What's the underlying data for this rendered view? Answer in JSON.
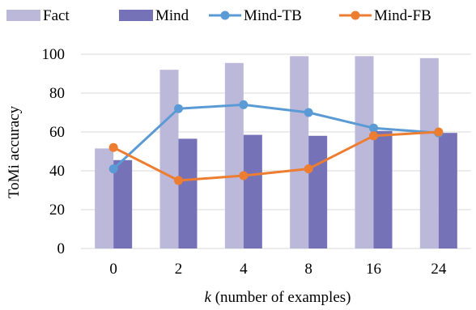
{
  "chart_data": {
    "type": "bar",
    "categories": [
      "0",
      "2",
      "4",
      "8",
      "16",
      "24"
    ],
    "bar_series": [
      {
        "name": "Fact",
        "color": "#bcb8da",
        "values": [
          51.5,
          92,
          95.5,
          99,
          99,
          98
        ]
      },
      {
        "name": "Mind",
        "color": "#7672b8",
        "values": [
          45.5,
          56.5,
          58.5,
          58,
          60.5,
          59.5
        ]
      }
    ],
    "line_series": [
      {
        "name": "Mind-TB",
        "color": "#5b9bd5",
        "values": [
          41,
          72,
          74,
          70,
          62,
          59.5
        ]
      },
      {
        "name": "Mind-FB",
        "color": "#ed7d31",
        "values": [
          52,
          35,
          37.5,
          41,
          58,
          60
        ]
      }
    ],
    "xlabel_italic": "k",
    "xlabel_rest": " (number of examples)",
    "ylabel": "ToMi accuracy",
    "ylim": [
      0,
      100
    ],
    "yticks": [
      0,
      20,
      40,
      60,
      80,
      100
    ],
    "grid": true,
    "legend_position": "top"
  }
}
